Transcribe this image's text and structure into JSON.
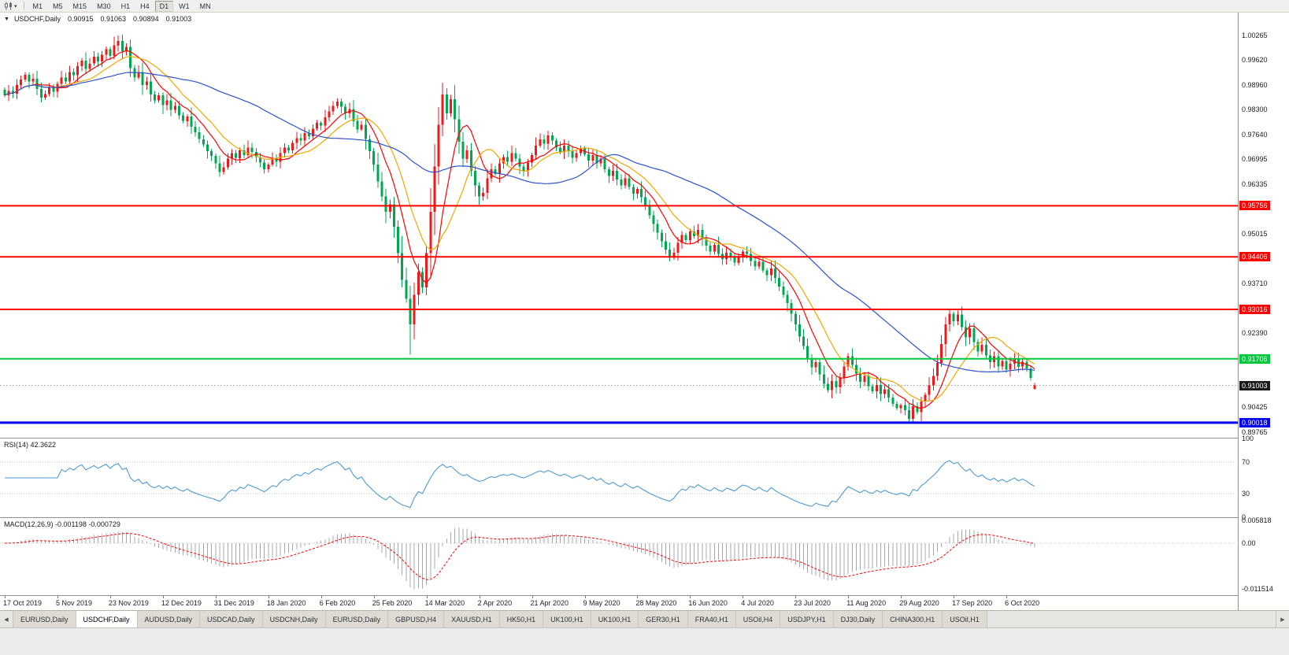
{
  "toolbar": {
    "timeframes": [
      "M1",
      "M5",
      "M15",
      "M30",
      "H1",
      "H4",
      "D1",
      "W1",
      "MN"
    ],
    "active_timeframe": "D1"
  },
  "icons": {
    "collapse": "▼",
    "caret": "▾",
    "tab_left": "◀",
    "tab_right": "▶"
  },
  "chart_header": {
    "symbol_label": "USDCHF,Daily",
    "open": "0.90915",
    "high": "0.91063",
    "low": "0.90894",
    "close": "0.91003"
  },
  "indicator_labels": {
    "rsi": "RSI(14) 42.3622",
    "macd": "MACD(12,26,9) -0.001198 -0.000729"
  },
  "tabs": {
    "items": [
      {
        "label": "EURUSD,Daily"
      },
      {
        "label": "USDCHF,Daily",
        "active": true
      },
      {
        "label": "AUDUSD,Daily"
      },
      {
        "label": "USDCAD,Daily"
      },
      {
        "label": "USDCNH,Daily"
      },
      {
        "label": "EURUSD,Daily"
      },
      {
        "label": "GBPUSD,H4"
      },
      {
        "label": "XAUUSD,H1"
      },
      {
        "label": "HK50,H1"
      },
      {
        "label": "UK100,H1"
      },
      {
        "label": "UK100,H1"
      },
      {
        "label": "GER30,H1"
      },
      {
        "label": "FRA40,H1"
      },
      {
        "label": "USOil,H4"
      },
      {
        "label": "USDJPY,H1"
      },
      {
        "label": "DJ30,Daily"
      },
      {
        "label": "CHINA300,H1"
      },
      {
        "label": "USOil,H1"
      }
    ]
  },
  "chart_data": {
    "type": "candlestick",
    "symbol": "USDCHF",
    "timeframe": "Daily",
    "title": "USDCHF,Daily",
    "y_range": [
      0.8962,
      1.0087
    ],
    "y_axis_ticks": [
      "1.00265",
      "0.99620",
      "0.98960",
      "0.98300",
      "0.97640",
      "0.96995",
      "0.96335",
      "0.95015",
      "0.93710",
      "0.92390",
      "0.90425",
      "0.89765"
    ],
    "x_labels": [
      "17 Oct 2019",
      "5 Nov 2019",
      "23 Nov 2019",
      "12 Dec 2019",
      "31 Dec 2019",
      "18 Jan 2020",
      "6 Feb 2020",
      "25 Feb 2020",
      "14 Mar 2020",
      "2 Apr 2020",
      "21 Apr 2020",
      "9 May 2020",
      "28 May 2020",
      "16 Jun 2020",
      "4 Jul 2020",
      "23 Jul 2020",
      "11 Aug 2020",
      "29 Aug 2020",
      "17 Sep 2020",
      "6 Oct 2020"
    ],
    "bars_per_label": 13,
    "bull_color": "#f01818",
    "bear_color": "#00a650",
    "closes": [
      0.9868,
      0.988,
      0.9872,
      0.9895,
      0.991,
      0.9922,
      0.9905,
      0.9912,
      0.9885,
      0.9862,
      0.9871,
      0.989,
      0.9878,
      0.9898,
      0.9915,
      0.9905,
      0.993,
      0.9921,
      0.9945,
      0.996,
      0.9938,
      0.9952,
      0.997,
      0.9958,
      0.9975,
      0.999,
      0.9972,
      1.0,
      1.0012,
      0.9985,
      0.9996,
      0.994,
      0.9915,
      0.993,
      0.9895,
      0.9905,
      0.987,
      0.9855,
      0.9868,
      0.9842,
      0.9855,
      0.983,
      0.984,
      0.9815,
      0.98,
      0.9812,
      0.9785,
      0.977,
      0.9752,
      0.9738,
      0.972,
      0.9708,
      0.9688,
      0.9665,
      0.9678,
      0.97,
      0.9715,
      0.9702,
      0.9722,
      0.971,
      0.973,
      0.9718,
      0.9705,
      0.969,
      0.9672,
      0.9685,
      0.97,
      0.9692,
      0.9715,
      0.973,
      0.9722,
      0.9742,
      0.9755,
      0.9748,
      0.9768,
      0.976,
      0.978,
      0.9795,
      0.9788,
      0.981,
      0.9825,
      0.984,
      0.9852,
      0.9838,
      0.982,
      0.9832,
      0.98,
      0.9778,
      0.979,
      0.9752,
      0.972,
      0.9685,
      0.964,
      0.96,
      0.956,
      0.958,
      0.952,
      0.945,
      0.938,
      0.933,
      0.9262,
      0.934,
      0.94,
      0.936,
      0.945,
      0.956,
      0.968,
      0.979,
      0.987,
      0.982,
      0.9858,
      0.9805,
      0.9745,
      0.97,
      0.9722,
      0.9668,
      0.963,
      0.96,
      0.961,
      0.9648,
      0.9672,
      0.966,
      0.9688,
      0.9705,
      0.9692,
      0.9715,
      0.97,
      0.968,
      0.9668,
      0.969,
      0.971,
      0.9735,
      0.9752,
      0.974,
      0.9762,
      0.9748,
      0.973,
      0.9718,
      0.9735,
      0.972,
      0.9702,
      0.9715,
      0.9728,
      0.9712,
      0.9695,
      0.971,
      0.9688,
      0.97,
      0.9672,
      0.9655,
      0.9668,
      0.9645,
      0.963,
      0.9648,
      0.9625,
      0.9608,
      0.962,
      0.9598,
      0.9575,
      0.955,
      0.9528,
      0.9505,
      0.9482,
      0.946,
      0.9438,
      0.9452,
      0.9478,
      0.9498,
      0.9485,
      0.9508,
      0.9495,
      0.9512,
      0.9488,
      0.947,
      0.9455,
      0.9472,
      0.9448,
      0.9435,
      0.9452,
      0.944,
      0.9425,
      0.9442,
      0.9455,
      0.9448,
      0.943,
      0.9415,
      0.9428,
      0.9405,
      0.9392,
      0.941,
      0.9385,
      0.9362,
      0.934,
      0.9318,
      0.929,
      0.9262,
      0.923,
      0.9205,
      0.917,
      0.9148,
      0.9162,
      0.913,
      0.9105,
      0.9088,
      0.9112,
      0.9095,
      0.912,
      0.915,
      0.9178,
      0.9155,
      0.9132,
      0.911,
      0.9125,
      0.9098,
      0.9085,
      0.9102,
      0.9078,
      0.909,
      0.9068,
      0.9052,
      0.904,
      0.9048,
      0.9035,
      0.9012,
      0.9045,
      0.903,
      0.9058,
      0.9075,
      0.91,
      0.9125,
      0.916,
      0.921,
      0.9262,
      0.929,
      0.927,
      0.9288,
      0.9255,
      0.9228,
      0.9252,
      0.9215,
      0.919,
      0.9208,
      0.918,
      0.9162,
      0.9178,
      0.915,
      0.9165,
      0.9142,
      0.9158,
      0.9172,
      0.915,
      0.9163,
      0.9145,
      0.912,
      0.91
    ],
    "bar_overrides": {
      "28": {
        "h": 1.00265
      },
      "82": {
        "h": 0.986
      },
      "100": {
        "l": 0.9182
      },
      "108": {
        "h": 0.9901
      },
      "223": {
        "l": 0.8999
      },
      "233": {
        "h": 0.93016
      },
      "235": {
        "h": 0.9298
      },
      "254": {
        "o": 0.90915,
        "h": 0.91063,
        "l": 0.90894,
        "c": 0.91003
      }
    },
    "moving_averages": [
      {
        "period": 8,
        "color": "#ff0000"
      },
      {
        "period": 14,
        "color": "#f0a800"
      },
      {
        "period": 45,
        "color": "#2d52cc"
      }
    ],
    "hlines": [
      {
        "label": "0.95756",
        "price": 0.95756,
        "color": "#ff0000",
        "width": 2
      },
      {
        "label": "0.94406",
        "price": 0.94406,
        "color": "#ff0000",
        "width": 2
      },
      {
        "label": "0.93016",
        "price": 0.93016,
        "color": "#ff0000",
        "width": 2
      },
      {
        "label": "0.91706",
        "price": 0.91706,
        "color": "#00c83c",
        "width": 2
      },
      {
        "label": "0.90018",
        "price": 0.90018,
        "color": "#0000ee",
        "width": 3
      }
    ],
    "current_price": {
      "value": 0.91003,
      "label": "0.91003",
      "line_color": "#aaaaaa",
      "badge_color": "#1a1a1a"
    },
    "rsi": {
      "period": 14,
      "value": 42.3622,
      "label": "RSI(14) 42.3622",
      "levels": [
        70,
        30
      ],
      "axis_labels": [
        "100",
        "70",
        "30",
        "0"
      ],
      "color": "#4f9ad1"
    },
    "macd": {
      "fast": 12,
      "slow": 26,
      "signal": 9,
      "main_value": -0.001198,
      "signal_value": -0.000729,
      "label": "MACD(12,26,9) -0.001198 -0.000729",
      "axis_labels": [
        "0.005818",
        "0.00",
        "-0.011514"
      ],
      "histogram_color": "#a8a8a8",
      "signal_color": "#ff0000"
    }
  }
}
